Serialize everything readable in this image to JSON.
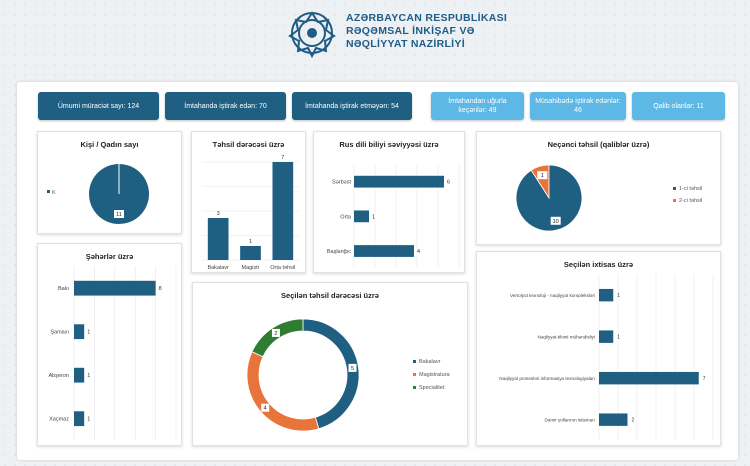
{
  "header": {
    "ministry_line1": "AZƏRBAYCAN RESPUBLİKASI",
    "ministry_line2": "RƏQƏMSAL İNKİŞAF VƏ",
    "ministry_line3": "NƏQLİYYAT NAZİRLİYİ",
    "logo_icon": "ministry-emblem-icon"
  },
  "kpis": [
    {
      "label": "Ümumi müraciət sayı: 124",
      "style": "dark"
    },
    {
      "label": "İmtahanda iştirak edən: 70",
      "style": "dark"
    },
    {
      "label": "İmtahanda iştirak etməyən: 54",
      "style": "dark"
    },
    {
      "label": "İmtahandan uğurla keçənlər: 49",
      "style": "light"
    },
    {
      "label": "Müsahibədə iştirak edənlər: 46",
      "style": "light"
    },
    {
      "label": "Qalib olanlar: 11",
      "style": "light"
    }
  ],
  "colors": {
    "primary": "#1f5f82",
    "orange": "#e8743b",
    "green": "#2e7d32",
    "light": "#5db8e6"
  },
  "chart_data": [
    {
      "id": "gender",
      "type": "pie",
      "title": "Kişi / Qadın sayı",
      "categories": [
        "K"
      ],
      "values": [
        11
      ],
      "data_labels": [
        "11"
      ],
      "legend_position": "left"
    },
    {
      "id": "education-level",
      "type": "bar",
      "title": "Təhsil dərəcəsi üzrə",
      "categories": [
        "Bakalavr",
        "Magistr",
        "Orta təhsil"
      ],
      "values": [
        3,
        1,
        7
      ],
      "ylim": [
        0,
        7
      ]
    },
    {
      "id": "russian-level",
      "type": "bar",
      "orientation": "horizontal",
      "title": "Rus dili biliyi səviyyəsi üzrə",
      "categories": [
        "Sərbəst",
        "Orta",
        "Başlanğıc"
      ],
      "values": [
        6,
        1,
        4
      ],
      "xlim": [
        0,
        7
      ]
    },
    {
      "id": "which-education",
      "type": "pie",
      "title": "Neçənci təhsil (qaliblər üzrə)",
      "categories": [
        "1-ci təhsil",
        "2-ci təhsil"
      ],
      "values": [
        10,
        1
      ],
      "data_labels": [
        "10",
        "1"
      ],
      "legend_position": "right"
    },
    {
      "id": "cities",
      "type": "bar",
      "orientation": "horizontal",
      "title": "Şəhərlər üzrə",
      "categories": [
        "Bakı",
        "Şamaxı",
        "Abşeron",
        "Xaçmaz"
      ],
      "values": [
        8,
        1,
        1,
        1
      ],
      "xlim": [
        0,
        10
      ]
    },
    {
      "id": "chosen-education",
      "type": "pie",
      "donut": true,
      "title": "Seçilən təhsil dərəcəsi üzrə",
      "categories": [
        "Bakalavr",
        "Magistratura",
        "Specialitet"
      ],
      "values": [
        5,
        4,
        2
      ],
      "data_labels": [
        "5",
        "4",
        "2"
      ],
      "legend_position": "right"
    },
    {
      "id": "chosen-specialty",
      "type": "bar",
      "orientation": "horizontal",
      "title": "Seçilən ixtisas üzrə",
      "categories": [
        "Vertolyot texnoloji - nəqliyyat kompleksləri",
        "Nəqliyyat-tikinti mühəndisliyi",
        "Nəqliyyat prosesləri informasiya texnologiyaları",
        "Dəmir yollarının istismarı"
      ],
      "values": [
        1,
        1,
        7,
        2
      ],
      "xlim": [
        0,
        8
      ]
    }
  ]
}
